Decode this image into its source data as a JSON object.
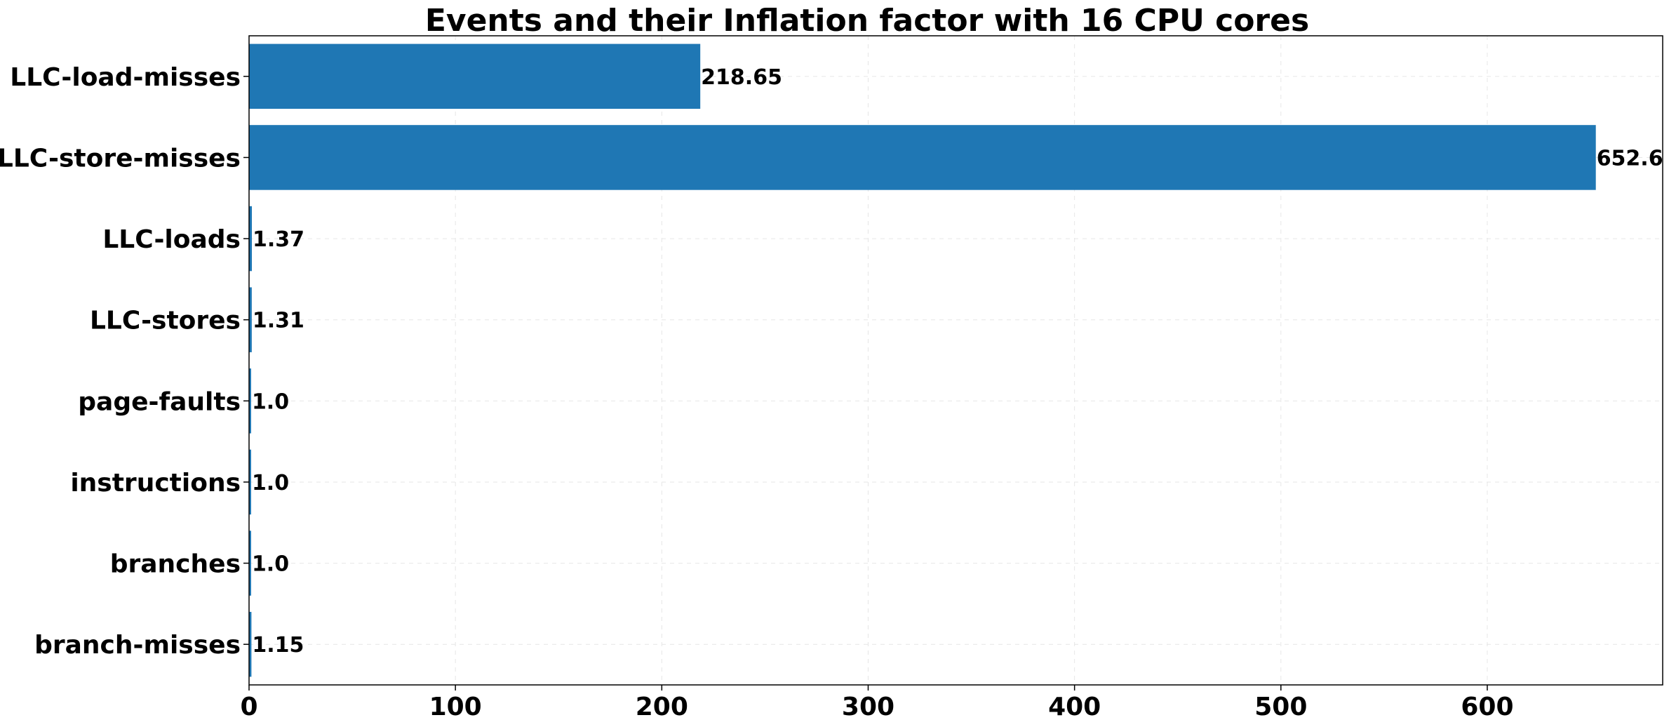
{
  "chart_data": {
    "type": "bar",
    "orientation": "horizontal",
    "title": "Events and their Inflation factor with 16 CPU cores",
    "xlabel": "",
    "ylabel": "",
    "categories": [
      "LLC-load-misses",
      "LLC-store-misses",
      "LLC-loads",
      "LLC-stores",
      "page-faults",
      "instructions",
      "branches",
      "branch-misses"
    ],
    "values": [
      218.65,
      652.6,
      1.37,
      1.31,
      1.0,
      1.0,
      1.0,
      1.15
    ],
    "data_labels": [
      "218.65",
      "652.6",
      "1.37",
      "1.31",
      "1.0",
      "1.0",
      "1.0",
      "1.15"
    ],
    "xlim": [
      0,
      685
    ],
    "xticks": [
      0,
      100,
      200,
      300,
      400,
      500,
      600
    ],
    "xtick_labels": [
      "0",
      "100",
      "200",
      "300",
      "400",
      "500",
      "600"
    ],
    "grid": true,
    "bar_color": "#1f77b4",
    "legend": "none"
  }
}
